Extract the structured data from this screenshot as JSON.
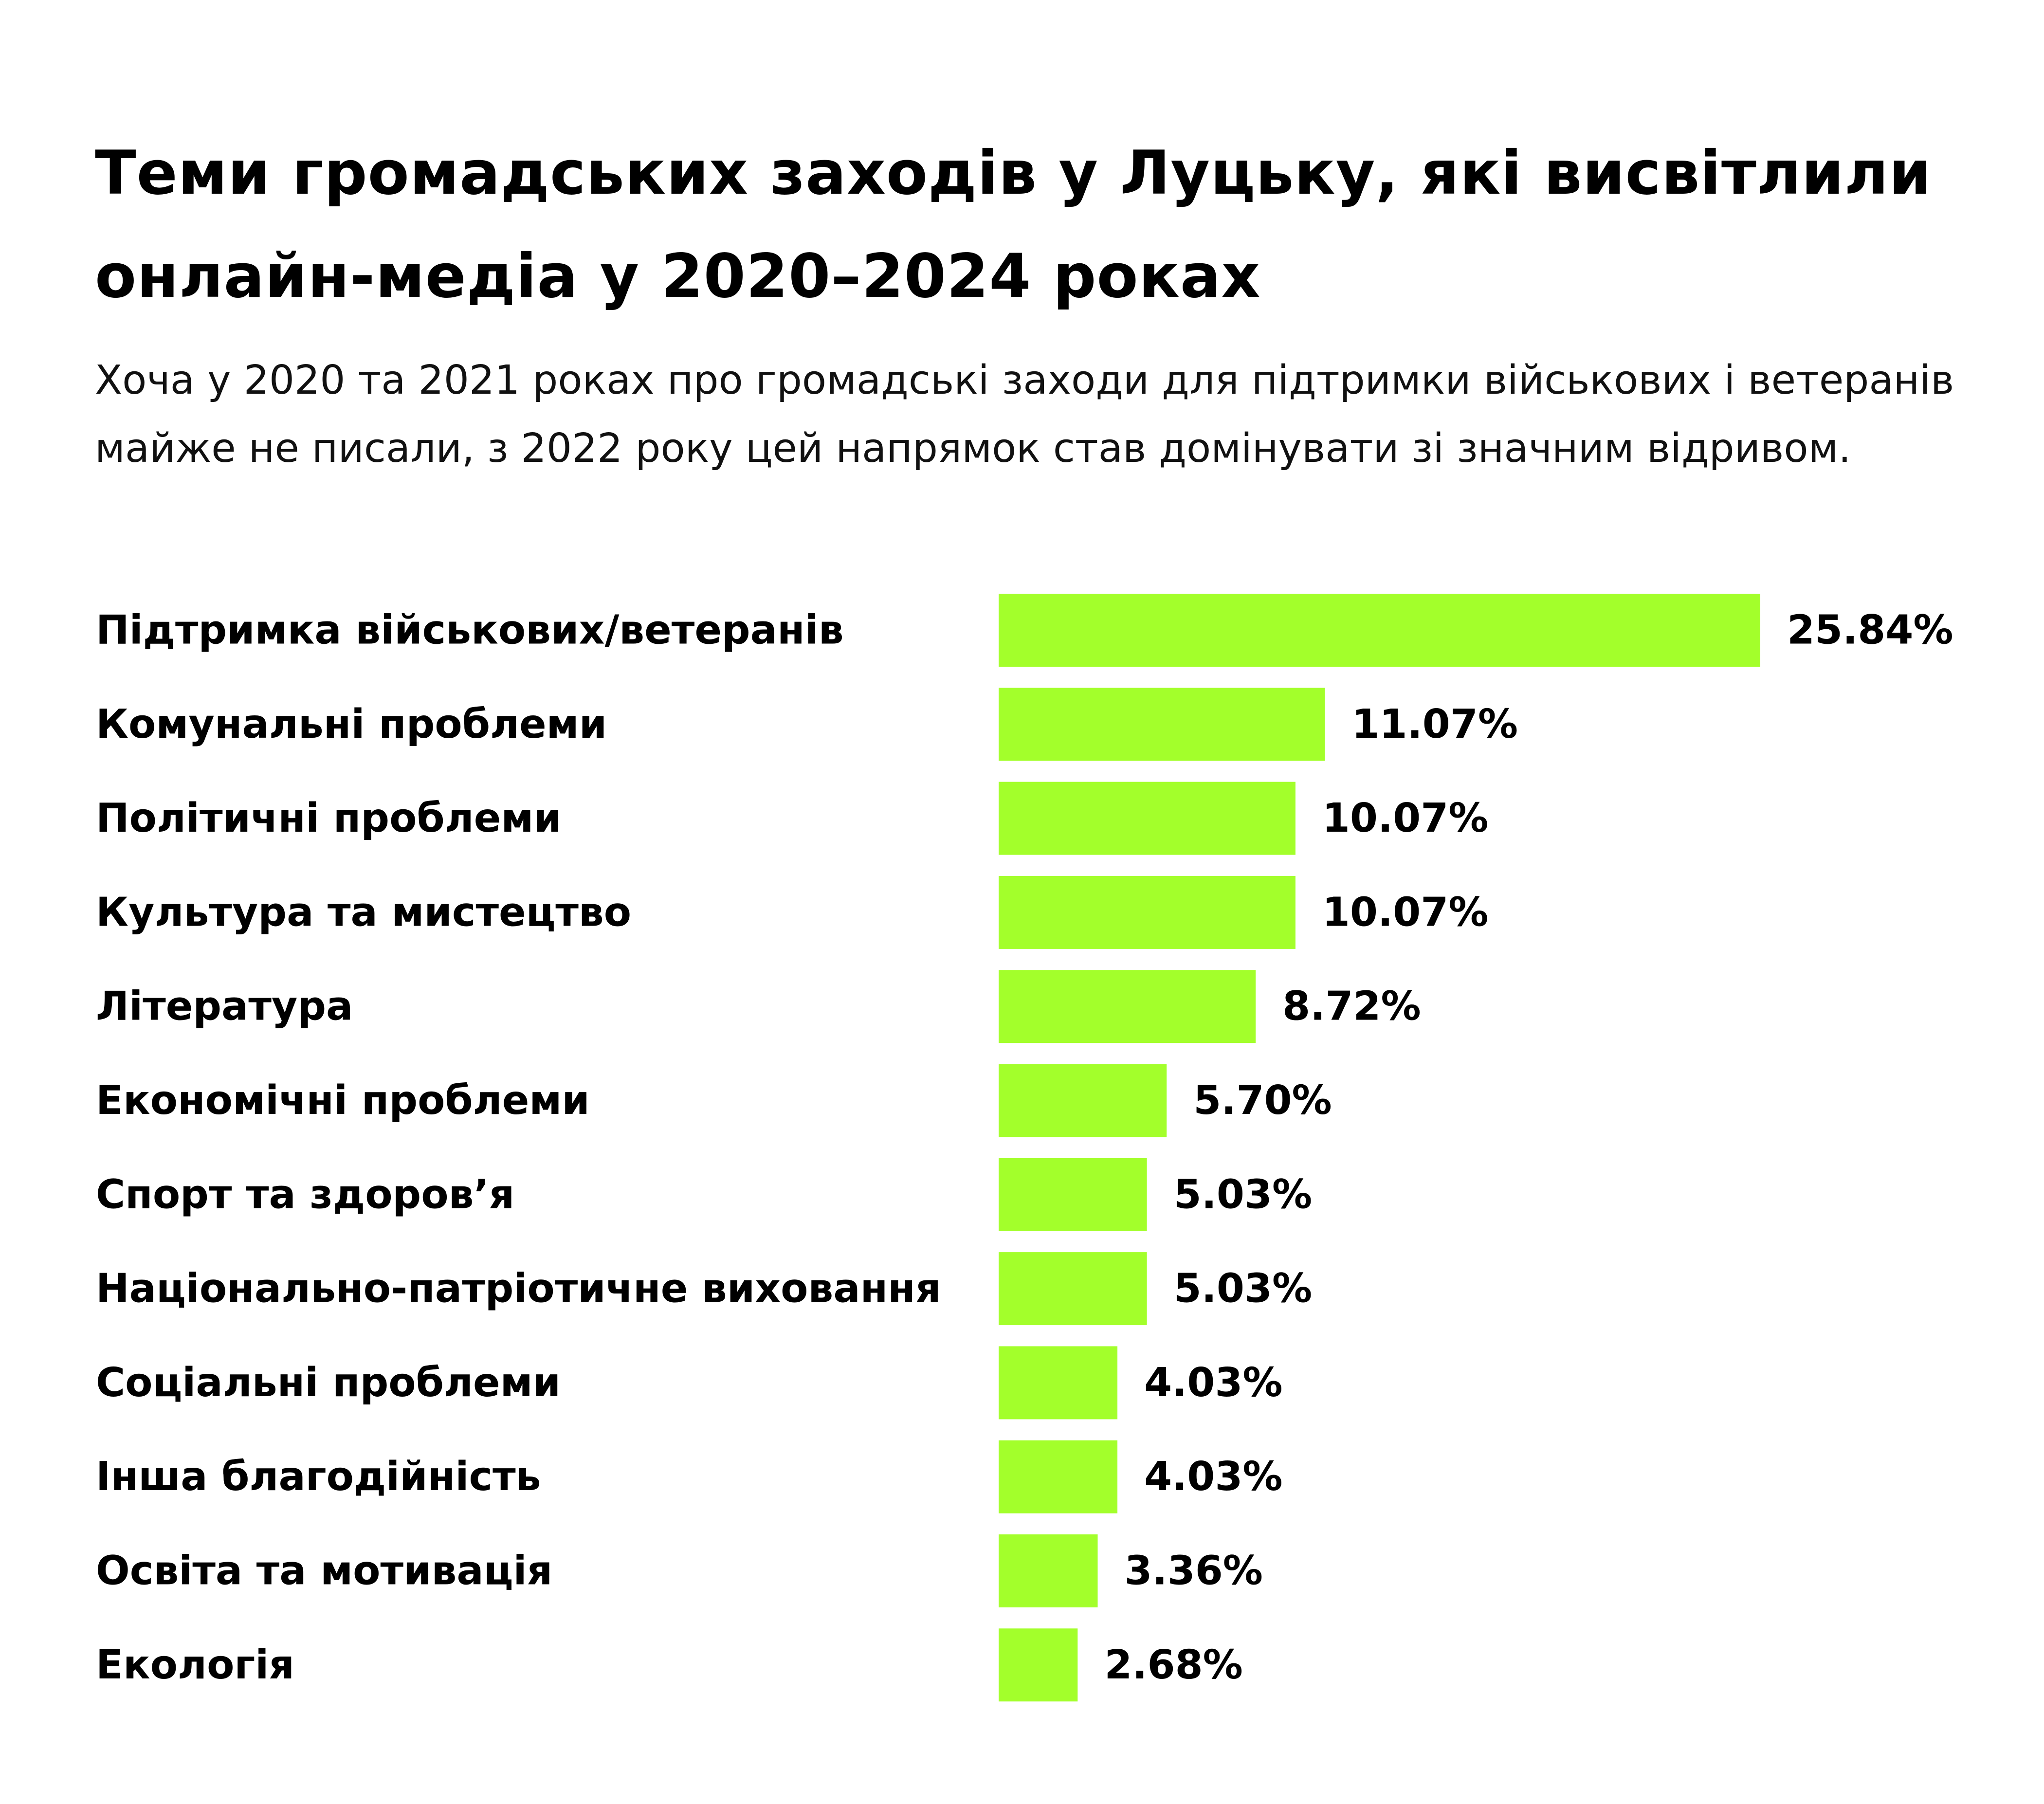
{
  "header": {
    "title": "Теми громадських заходів у Луцьку, які висвітлили онлайн-медіа у 2020–2024 роках",
    "subtitle": "Хоча у 2020 та 2021 роках про громадські заходи для підтримки військових і ветеранів майже не писали, з 2022 року цей напрямок став домінувати зі значним відривом."
  },
  "chart_data": {
    "type": "bar",
    "orientation": "horizontal",
    "categories": [
      "Підтримка військових/ветеранів",
      "Комунальні проблеми",
      "Політичні проблеми",
      "Культура та мистецтво",
      "Література",
      "Економічні проблеми",
      "Спорт та здоров’я",
      "Національно-патріотичне виховання",
      "Соціальні проблеми",
      "Інша благодійність",
      "Освіта та мотивація",
      "Екологія"
    ],
    "values": [
      25.84,
      11.07,
      10.07,
      10.07,
      8.72,
      5.7,
      5.03,
      5.03,
      4.03,
      4.03,
      3.36,
      2.68
    ],
    "value_labels": [
      "25.84%",
      "11.07%",
      "10.07%",
      "10.07%",
      "8.72%",
      "5.70%",
      "5.03%",
      "5.03%",
      "4.03%",
      "4.03%",
      "3.36%",
      "2.68%"
    ],
    "unit": "%",
    "bar_color": "#a3ff2b",
    "xlim": [
      0,
      25.84
    ],
    "grid": false,
    "legend": "none"
  }
}
